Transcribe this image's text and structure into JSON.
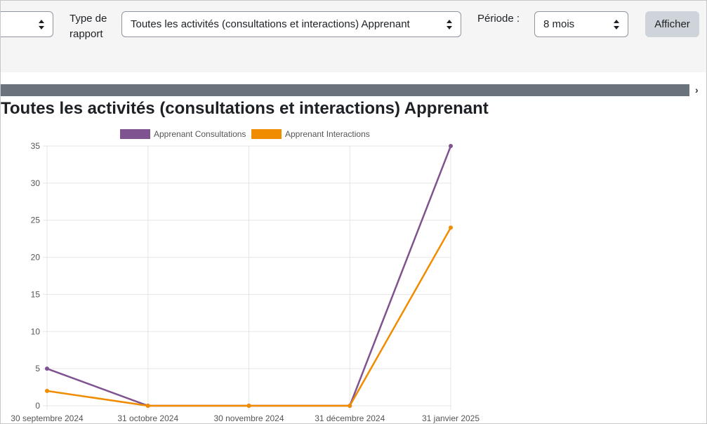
{
  "toolbar": {
    "first_select": {
      "value": ""
    },
    "report_type": {
      "label": "Type de rapport",
      "value": "Toutes les activités (consultations et interactions) Apprenant"
    },
    "period": {
      "label": "Période :",
      "value": "8 mois"
    },
    "submit_label": "Afficher"
  },
  "report_title": "Toutes les activités (consultations et interactions) Apprenant",
  "chart_data": {
    "type": "line",
    "title": "",
    "xlabel": "",
    "ylabel": "",
    "x": [
      "30 septembre 2024",
      "31 octobre 2024",
      "30 novembre 2024",
      "31 décembre 2024",
      "31 janvier 2025"
    ],
    "ylim": [
      0,
      35
    ],
    "yticks": [
      0,
      5,
      10,
      15,
      20,
      25,
      30,
      35
    ],
    "grid": true,
    "legend": "top",
    "series": [
      {
        "name": "Apprenant Consultations",
        "color": "#7f5290",
        "values": [
          5,
          0,
          0,
          0,
          35
        ]
      },
      {
        "name": "Apprenant Interactions",
        "color": "#f08c00",
        "values": [
          2,
          0,
          0,
          0,
          24
        ]
      }
    ]
  }
}
